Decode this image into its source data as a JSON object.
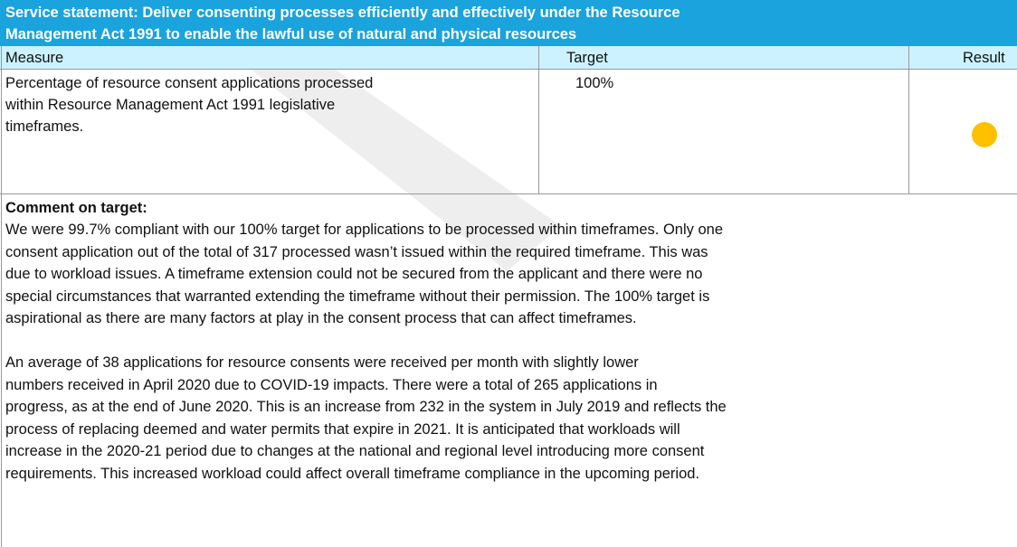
{
  "header": {
    "title_lines": [
      "Service statement:  Deliver consenting processes efficiently and effectively under the Resource",
      "Management Act 1991 to enable the lawful use of natural and physical resources"
    ]
  },
  "table": {
    "columns": [
      "Measure",
      "Target",
      "Result"
    ],
    "rows": [
      {
        "measure_lines": [
          "Percentage of resource consent applications processed",
          "within Resource Management Act 1991 legislative",
          "timeframes."
        ],
        "target": "100%"
      }
    ]
  },
  "comment": {
    "heading": "Comment on target:",
    "paragraphs": [
      [
        "We were 99.7% compliant with our 100% target for applications to be processed within timeframes.  Only one",
        "consent application out of the total of 317 processed wasn’t issued within the required timeframe.  This was",
        "due to workload issues. A timeframe extension could not be secured from the applicant and there were no",
        "special circumstances that warranted extending the timeframe without their permission. The 100% target is",
        "aspirational as there are many factors at play in the consent process that can affect timeframes."
      ],
      [
        "An average of 38 applications for resource consents were received per month with slightly lower",
        "numbers received in April 2020 due to COVID-19 impacts. There were a total of 265 applications in",
        "progress, as at the end of June 2020. This is an increase from 232 in the system in July 2019 and reflects the",
        "process of replacing deemed and water permits that expire in 2021. It is anticipated that workloads will",
        "increase in the 2020-21 period due to changes at the national and regional level introducing more consent",
        "requirements. This increased workload could affect overall timeframe compliance in the upcoming period."
      ]
    ]
  }
}
